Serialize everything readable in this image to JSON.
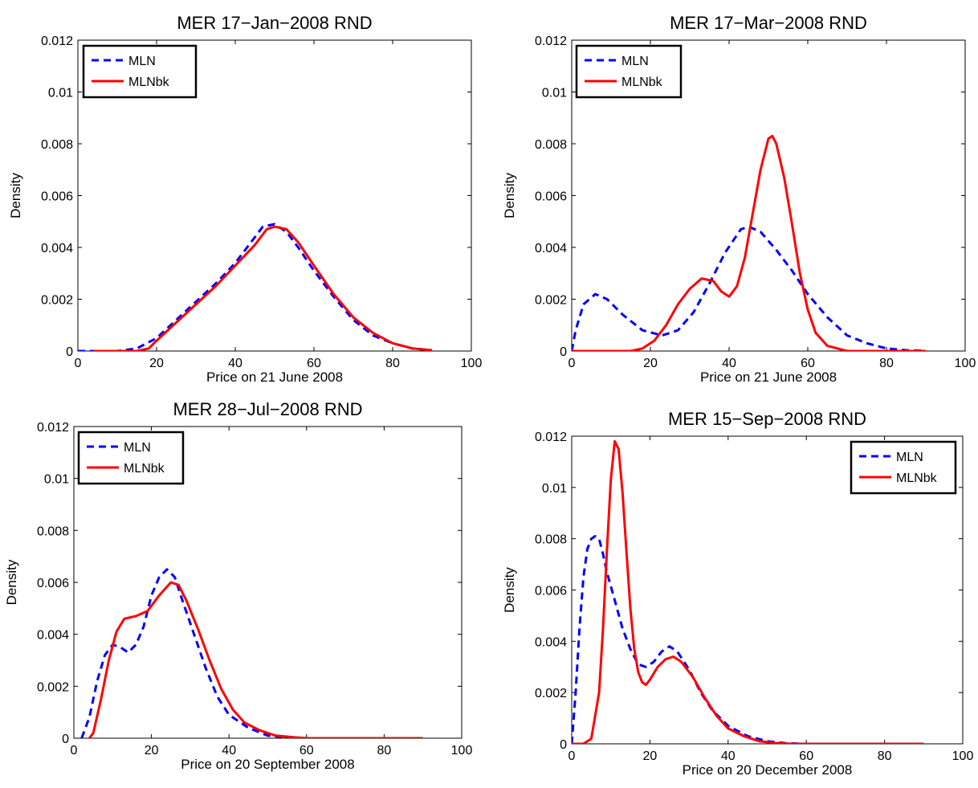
{
  "chart_data": [
    {
      "type": "line",
      "title": "MER 17−Jan−2008 RND",
      "xlabel": "Price on 21 June 2008",
      "ylabel": "Density",
      "xlim": [
        0,
        100
      ],
      "ylim": [
        0,
        0.012
      ],
      "xticks": [
        "0",
        "20",
        "40",
        "60",
        "80",
        "100"
      ],
      "yticks": [
        "0",
        "0.002",
        "0.004",
        "0.006",
        "0.008",
        "0.01",
        "0.012"
      ],
      "legend_position": "top-left",
      "grid": false,
      "series": [
        {
          "name": "MLN",
          "color": "#0000ff",
          "style": "dashed",
          "points": [
            [
              0,
              0
            ],
            [
              10,
              0
            ],
            [
              15,
              0.0001
            ],
            [
              20,
              0.0005
            ],
            [
              25,
              0.0012
            ],
            [
              30,
              0.0019
            ],
            [
              35,
              0.0026
            ],
            [
              40,
              0.0034
            ],
            [
              44,
              0.0042
            ],
            [
              47,
              0.0048
            ],
            [
              50,
              0.0049
            ],
            [
              53,
              0.0046
            ],
            [
              56,
              0.004
            ],
            [
              60,
              0.0031
            ],
            [
              65,
              0.0021
            ],
            [
              70,
              0.0012
            ],
            [
              75,
              0.0006
            ],
            [
              80,
              0.0003
            ],
            [
              85,
              0.0001
            ],
            [
              90,
              3e-05
            ]
          ]
        },
        {
          "name": "MLNbk",
          "color": "#ff0000",
          "style": "solid",
          "points": [
            [
              4,
              0
            ],
            [
              15,
              0
            ],
            [
              18,
              0.0001
            ],
            [
              20,
              0.0004
            ],
            [
              25,
              0.0011
            ],
            [
              30,
              0.0018
            ],
            [
              35,
              0.0025
            ],
            [
              40,
              0.0033
            ],
            [
              45,
              0.0041
            ],
            [
              48,
              0.0047
            ],
            [
              50,
              0.0048
            ],
            [
              53,
              0.0047
            ],
            [
              56,
              0.0042
            ],
            [
              60,
              0.0033
            ],
            [
              65,
              0.0022
            ],
            [
              70,
              0.0013
            ],
            [
              75,
              0.0007
            ],
            [
              80,
              0.0003
            ],
            [
              85,
              0.0001
            ],
            [
              90,
              3e-05
            ]
          ]
        }
      ]
    },
    {
      "type": "line",
      "title": "MER 17−Mar−2008 RND",
      "xlabel": "Price on 21 June 2008",
      "ylabel": "Density",
      "xlim": [
        0,
        100
      ],
      "ylim": [
        0,
        0.012
      ],
      "xticks": [
        "0",
        "20",
        "40",
        "60",
        "80",
        "100"
      ],
      "yticks": [
        "0",
        "0.002",
        "0.004",
        "0.006",
        "0.008",
        "0.01",
        "0.012"
      ],
      "legend_position": "top-left",
      "grid": false,
      "series": [
        {
          "name": "MLN",
          "color": "#0000ff",
          "style": "dashed",
          "points": [
            [
              0,
              0
            ],
            [
              1,
              0.0008
            ],
            [
              3,
              0.0018
            ],
            [
              6,
              0.0022
            ],
            [
              9,
              0.002
            ],
            [
              13,
              0.0014
            ],
            [
              18,
              0.0008
            ],
            [
              23,
              0.0006
            ],
            [
              27,
              0.0008
            ],
            [
              31,
              0.0015
            ],
            [
              35,
              0.0026
            ],
            [
              39,
              0.0038
            ],
            [
              43,
              0.0047
            ],
            [
              45,
              0.0048
            ],
            [
              48,
              0.0046
            ],
            [
              52,
              0.0039
            ],
            [
              56,
              0.0031
            ],
            [
              60,
              0.0022
            ],
            [
              65,
              0.0013
            ],
            [
              70,
              0.0006
            ],
            [
              75,
              0.0003
            ],
            [
              80,
              0.0001
            ],
            [
              85,
              3e-05
            ],
            [
              90,
              1e-05
            ]
          ]
        },
        {
          "name": "MLNbk",
          "color": "#ff0000",
          "style": "solid",
          "points": [
            [
              0,
              0
            ],
            [
              15,
              0
            ],
            [
              18,
              0.0001
            ],
            [
              21,
              0.0004
            ],
            [
              24,
              0.001
            ],
            [
              27,
              0.0018
            ],
            [
              30,
              0.0024
            ],
            [
              33,
              0.0028
            ],
            [
              36,
              0.0027
            ],
            [
              38,
              0.0023
            ],
            [
              40,
              0.0021
            ],
            [
              42,
              0.0025
            ],
            [
              44,
              0.0036
            ],
            [
              46,
              0.0053
            ],
            [
              48,
              0.007
            ],
            [
              50,
              0.0082
            ],
            [
              51,
              0.0083
            ],
            [
              52,
              0.008
            ],
            [
              54,
              0.0067
            ],
            [
              56,
              0.0049
            ],
            [
              58,
              0.003
            ],
            [
              60,
              0.0016
            ],
            [
              62,
              0.0007
            ],
            [
              65,
              0.0002
            ],
            [
              70,
              0
            ],
            [
              90,
              0
            ]
          ]
        }
      ]
    },
    {
      "type": "line",
      "title": "MER 28−Jul−2008 RND",
      "xlabel": "Price on 20 September 2008",
      "ylabel": "Density",
      "xlim": [
        0,
        100
      ],
      "ylim": [
        0,
        0.012
      ],
      "xticks": [
        "0",
        "20",
        "40",
        "60",
        "80",
        "100"
      ],
      "yticks": [
        "0",
        "0.002",
        "0.004",
        "0.006",
        "0.008",
        "0.01",
        "0.012"
      ],
      "legend_position": "top-left",
      "grid": false,
      "series": [
        {
          "name": "MLN",
          "color": "#0000ff",
          "style": "dashed",
          "points": [
            [
              2,
              0
            ],
            [
              4,
              0.0008
            ],
            [
              6,
              0.0022
            ],
            [
              8,
              0.0032
            ],
            [
              10,
              0.0036
            ],
            [
              12,
              0.0035
            ],
            [
              14,
              0.0033
            ],
            [
              16,
              0.0036
            ],
            [
              18,
              0.0043
            ],
            [
              20,
              0.0055
            ],
            [
              22,
              0.0062
            ],
            [
              24,
              0.0065
            ],
            [
              26,
              0.0062
            ],
            [
              28,
              0.0053
            ],
            [
              31,
              0.004
            ],
            [
              34,
              0.0027
            ],
            [
              37,
              0.0016
            ],
            [
              40,
              0.0009
            ],
            [
              45,
              0.0004
            ],
            [
              50,
              0.0001
            ],
            [
              55,
              3e-05
            ],
            [
              60,
              0
            ],
            [
              90,
              0
            ]
          ]
        },
        {
          "name": "MLNbk",
          "color": "#ff0000",
          "style": "solid",
          "points": [
            [
              4,
              0
            ],
            [
              5,
              0.0002
            ],
            [
              7,
              0.0015
            ],
            [
              9,
              0.003
            ],
            [
              11,
              0.0041
            ],
            [
              13,
              0.0046
            ],
            [
              16,
              0.0047
            ],
            [
              19,
              0.0049
            ],
            [
              22,
              0.0055
            ],
            [
              25,
              0.006
            ],
            [
              27,
              0.0059
            ],
            [
              29,
              0.0053
            ],
            [
              32,
              0.0042
            ],
            [
              35,
              0.003
            ],
            [
              38,
              0.0019
            ],
            [
              41,
              0.0011
            ],
            [
              44,
              0.0006
            ],
            [
              48,
              0.0003
            ],
            [
              52,
              0.0001
            ],
            [
              57,
              3e-05
            ],
            [
              60,
              0
            ],
            [
              90,
              0
            ]
          ]
        }
      ]
    },
    {
      "type": "line",
      "title": "MER 15−Sep−2008 RND",
      "xlabel": "Price on 20 December 2008",
      "ylabel": "Density",
      "xlim": [
        0,
        100
      ],
      "ylim": [
        0,
        0.012
      ],
      "xticks": [
        "0",
        "20",
        "40",
        "60",
        "80",
        "100"
      ],
      "yticks": [
        "0",
        "0.002",
        "0.004",
        "0.006",
        "0.008",
        "0.01",
        "0.012"
      ],
      "legend_position": "top-right",
      "grid": false,
      "series": [
        {
          "name": "MLN",
          "color": "#0000ff",
          "style": "dashed",
          "points": [
            [
              0,
              0
            ],
            [
              1,
              0.002
            ],
            [
              2,
              0.0045
            ],
            [
              3,
              0.0065
            ],
            [
              4,
              0.0076
            ],
            [
              5,
              0.008
            ],
            [
              6,
              0.0081
            ],
            [
              7,
              0.008
            ],
            [
              8,
              0.0074
            ],
            [
              9,
              0.0067
            ],
            [
              11,
              0.0056
            ],
            [
              13,
              0.0045
            ],
            [
              15,
              0.0037
            ],
            [
              17,
              0.0031
            ],
            [
              19,
              0.003
            ],
            [
              21,
              0.0032
            ],
            [
              23,
              0.0036
            ],
            [
              25,
              0.0038
            ],
            [
              27,
              0.0036
            ],
            [
              30,
              0.0029
            ],
            [
              33,
              0.002
            ],
            [
              36,
              0.0013
            ],
            [
              40,
              0.0007
            ],
            [
              45,
              0.0003
            ],
            [
              50,
              0.0001
            ],
            [
              55,
              2e-05
            ],
            [
              60,
              0
            ],
            [
              90,
              0
            ]
          ]
        },
        {
          "name": "MLNbk",
          "color": "#ff0000",
          "style": "solid",
          "points": [
            [
              0,
              0
            ],
            [
              3,
              0
            ],
            [
              5,
              0.0002
            ],
            [
              7,
              0.002
            ],
            [
              8,
              0.0045
            ],
            [
              9,
              0.0075
            ],
            [
              10,
              0.0103
            ],
            [
              11,
              0.0118
            ],
            [
              12,
              0.0115
            ],
            [
              13,
              0.0098
            ],
            [
              14,
              0.0075
            ],
            [
              15,
              0.0053
            ],
            [
              16,
              0.0037
            ],
            [
              17,
              0.0028
            ],
            [
              18,
              0.0024
            ],
            [
              19,
              0.0023
            ],
            [
              20,
              0.0025
            ],
            [
              22,
              0.003
            ],
            [
              24,
              0.0033
            ],
            [
              26,
              0.0034
            ],
            [
              28,
              0.0032
            ],
            [
              31,
              0.0026
            ],
            [
              34,
              0.0018
            ],
            [
              37,
              0.0011
            ],
            [
              40,
              0.0006
            ],
            [
              44,
              0.0003
            ],
            [
              48,
              0.0001
            ],
            [
              52,
              3e-05
            ],
            [
              56,
              0
            ],
            [
              90,
              0
            ]
          ]
        }
      ]
    }
  ]
}
